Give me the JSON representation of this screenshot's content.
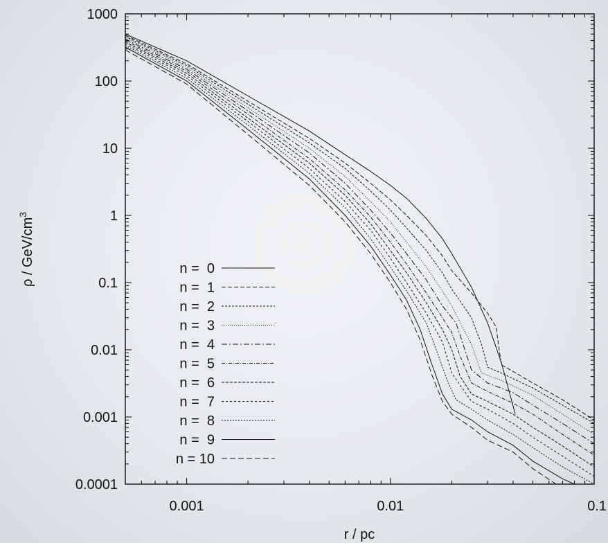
{
  "chart_data": {
    "type": "line",
    "title": "",
    "xlabel": "r / pc",
    "ylabel": "ρ / GeV/cm",
    "ylabel_superscript": "3",
    "x_scale": "log",
    "y_scale": "log",
    "xlim": [
      0.0005,
      0.1
    ],
    "ylim": [
      0.0001,
      1000
    ],
    "x_ticks": [
      0.001,
      0.01,
      0.1
    ],
    "x_tick_labels": [
      "0.001",
      "0.01",
      "0.1"
    ],
    "y_ticks": [
      0.0001,
      0.001,
      0.01,
      0.1,
      1,
      10,
      100,
      1000
    ],
    "y_tick_labels": [
      "0.0001",
      "0.001",
      "0.01",
      "0.1",
      "1",
      "10",
      "100",
      "1000"
    ],
    "grid": false,
    "legend_position": "bottom-left",
    "line_color": "#111111",
    "series": [
      {
        "name": "n =  0",
        "dash": "solid",
        "x": [
          0.0005,
          0.001,
          0.002,
          0.004,
          0.006,
          0.008,
          0.01,
          0.012,
          0.015,
          0.018,
          0.02,
          0.025,
          0.03,
          0.035,
          0.041
        ],
        "y": [
          500,
          200,
          60,
          18,
          8,
          4.5,
          2.8,
          1.8,
          0.9,
          0.45,
          0.27,
          0.085,
          0.025,
          0.0065,
          0.0011
        ]
      },
      {
        "name": "n =  1",
        "dash": "6,3",
        "x": [
          0.0005,
          0.001,
          0.002,
          0.004,
          0.006,
          0.008,
          0.01,
          0.012,
          0.015,
          0.018,
          0.02,
          0.025,
          0.03,
          0.033,
          0.035,
          0.05,
          0.07,
          0.1
        ],
        "y": [
          480,
          180,
          50,
          14,
          6,
          3,
          1.7,
          1,
          0.5,
          0.25,
          0.15,
          0.07,
          0.035,
          0.022,
          0.006,
          0.0032,
          0.0018,
          0.0009
        ]
      },
      {
        "name": "n =  2",
        "dash": "3,2",
        "x": [
          0.0005,
          0.001,
          0.002,
          0.004,
          0.006,
          0.008,
          0.01,
          0.012,
          0.015,
          0.018,
          0.02,
          0.025,
          0.028,
          0.03,
          0.035,
          0.05,
          0.07,
          0.1
        ],
        "y": [
          460,
          170,
          45,
          12,
          5,
          2.3,
          1.2,
          0.65,
          0.3,
          0.14,
          0.08,
          0.03,
          0.012,
          0.0055,
          0.0045,
          0.0027,
          0.0015,
          0.0008
        ]
      },
      {
        "name": "n =  3",
        "dash": "1,2",
        "x": [
          0.0005,
          0.001,
          0.002,
          0.004,
          0.006,
          0.008,
          0.01,
          0.012,
          0.015,
          0.018,
          0.02,
          0.025,
          0.028,
          0.035,
          0.05,
          0.07,
          0.1
        ],
        "y": [
          440,
          160,
          40,
          10,
          3.8,
          1.6,
          0.8,
          0.4,
          0.17,
          0.075,
          0.045,
          0.012,
          0.0045,
          0.0035,
          0.0021,
          0.0011,
          0.00055
        ]
      },
      {
        "name": "n =  4",
        "dash": "8,3,2,3",
        "x": [
          0.0005,
          0.001,
          0.002,
          0.004,
          0.006,
          0.008,
          0.01,
          0.012,
          0.015,
          0.018,
          0.021,
          0.025,
          0.03,
          0.04,
          0.05,
          0.07,
          0.1
        ],
        "y": [
          420,
          150,
          36,
          8.5,
          3,
          1.2,
          0.55,
          0.27,
          0.11,
          0.045,
          0.025,
          0.005,
          0.0032,
          0.0023,
          0.0015,
          0.0008,
          0.0004
        ]
      },
      {
        "name": "n =  5",
        "dash": "5,2,1,2",
        "x": [
          0.0005,
          0.001,
          0.002,
          0.004,
          0.006,
          0.008,
          0.01,
          0.012,
          0.015,
          0.018,
          0.02,
          0.022,
          0.025,
          0.03,
          0.04,
          0.05,
          0.07,
          0.1
        ],
        "y": [
          400,
          140,
          32,
          7,
          2.4,
          0.95,
          0.4,
          0.19,
          0.07,
          0.03,
          0.018,
          0.008,
          0.0032,
          0.0024,
          0.0016,
          0.0011,
          0.00055,
          0.00027
        ]
      },
      {
        "name": "n =  6",
        "dash": "4,2",
        "x": [
          0.0005,
          0.001,
          0.002,
          0.004,
          0.006,
          0.008,
          0.01,
          0.012,
          0.015,
          0.018,
          0.02,
          0.022,
          0.025,
          0.03,
          0.04,
          0.05,
          0.07,
          0.1
        ],
        "y": [
          380,
          130,
          28,
          6,
          2,
          0.75,
          0.3,
          0.14,
          0.05,
          0.02,
          0.01,
          0.004,
          0.0022,
          0.0017,
          0.0011,
          0.0007,
          0.00037,
          0.00018
        ]
      },
      {
        "name": "n =  7",
        "dash": "3,3",
        "x": [
          0.0005,
          0.001,
          0.002,
          0.004,
          0.006,
          0.008,
          0.01,
          0.012,
          0.015,
          0.018,
          0.02,
          0.025,
          0.03,
          0.04,
          0.05,
          0.07,
          0.1
        ],
        "y": [
          360,
          120,
          25,
          5,
          1.6,
          0.6,
          0.23,
          0.1,
          0.035,
          0.013,
          0.0045,
          0.0017,
          0.0013,
          0.0008,
          0.0005,
          0.00026,
          0.00013
        ]
      },
      {
        "name": "n =  8",
        "dash": "2,2",
        "x": [
          0.0005,
          0.001,
          0.002,
          0.004,
          0.006,
          0.008,
          0.01,
          0.012,
          0.015,
          0.017,
          0.019,
          0.021,
          0.025,
          0.03,
          0.04,
          0.05,
          0.07,
          0.1
        ],
        "y": [
          340,
          110,
          22,
          4.2,
          1.3,
          0.45,
          0.17,
          0.075,
          0.025,
          0.009,
          0.0035,
          0.0018,
          0.0013,
          0.0009,
          0.00055,
          0.00035,
          0.00018,
          0.0001
        ]
      },
      {
        "name": "n =  9",
        "dash": "solid",
        "x": [
          0.0005,
          0.001,
          0.002,
          0.004,
          0.006,
          0.008,
          0.01,
          0.012,
          0.014,
          0.016,
          0.018,
          0.02,
          0.025,
          0.03,
          0.04,
          0.05,
          0.07,
          0.08
        ],
        "y": [
          320,
          100,
          19,
          3.5,
          1,
          0.35,
          0.13,
          0.055,
          0.02,
          0.006,
          0.0022,
          0.0013,
          0.0009,
          0.0006,
          0.00038,
          0.00022,
          0.00012,
          0.0001
        ]
      },
      {
        "name": "n = 10",
        "dash": "8,4",
        "x": [
          0.0005,
          0.001,
          0.002,
          0.004,
          0.006,
          0.008,
          0.01,
          0.012,
          0.014,
          0.016,
          0.018,
          0.02,
          0.025,
          0.03,
          0.04,
          0.05,
          0.065
        ],
        "y": [
          290,
          90,
          16,
          2.8,
          0.8,
          0.27,
          0.1,
          0.04,
          0.014,
          0.0042,
          0.0017,
          0.0011,
          0.0007,
          0.00045,
          0.0003,
          0.00017,
          0.0001
        ]
      }
    ]
  }
}
